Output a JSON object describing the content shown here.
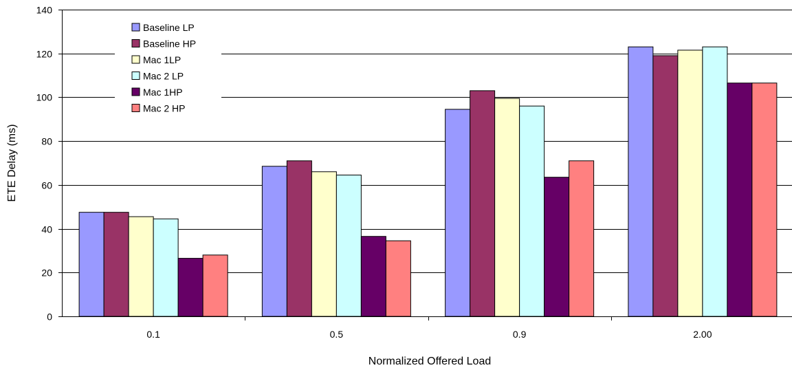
{
  "chart_data": {
    "type": "bar",
    "title": "",
    "xlabel": "Normalized Offered Load",
    "ylabel": "ETE Delay (ms)",
    "ylim": [
      0,
      140
    ],
    "yticks": [
      0,
      20,
      40,
      60,
      80,
      100,
      120,
      140
    ],
    "grid": true,
    "legend_position": "top-left",
    "categories": [
      "0.1",
      "0.5",
      "0.9",
      "2.00"
    ],
    "series": [
      {
        "name": "Baseline LP",
        "color": "#9999FF",
        "values": [
          47.5,
          68.5,
          94.5,
          123
        ]
      },
      {
        "name": "Baseline HP",
        "color": "#993366",
        "values": [
          47.5,
          71,
          103,
          119
        ]
      },
      {
        "name": "Mac 1LP",
        "color": "#FFFFCC",
        "values": [
          45.5,
          66,
          99.5,
          121.5
        ]
      },
      {
        "name": "Mac 2 LP",
        "color": "#CCFFFF",
        "values": [
          44.5,
          64.5,
          96,
          123
        ]
      },
      {
        "name": "Mac 1HP",
        "color": "#660066",
        "values": [
          26.5,
          36.5,
          63.5,
          106.5
        ]
      },
      {
        "name": "Mac 2 HP",
        "color": "#FF8080",
        "values": [
          28,
          34.5,
          71,
          106.5
        ]
      }
    ]
  }
}
